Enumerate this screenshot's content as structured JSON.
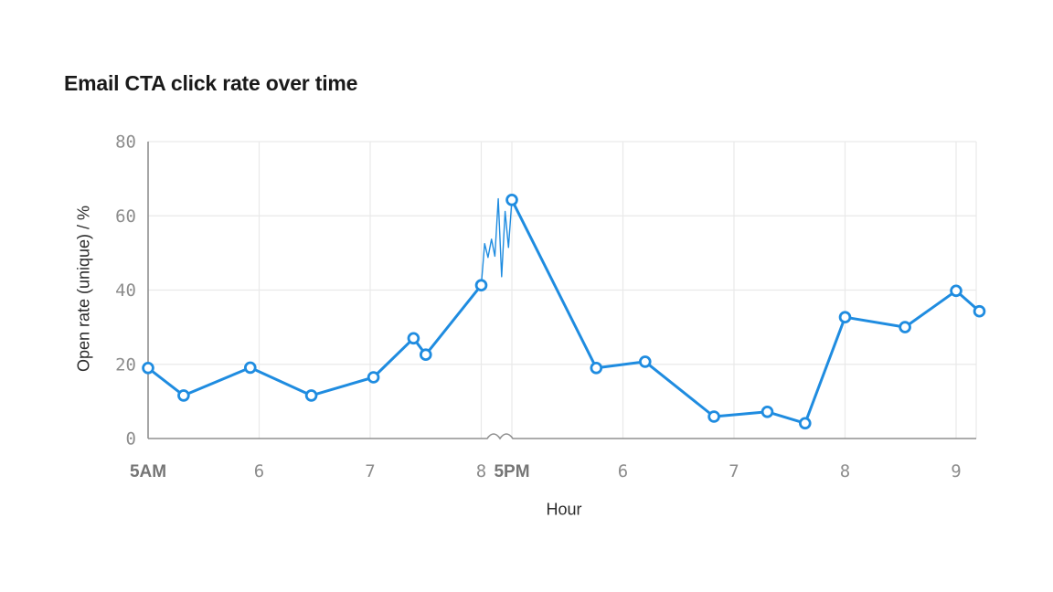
{
  "page": {
    "background": "#ffffff"
  },
  "chart_data": {
    "type": "line",
    "title": "Email CTA click rate over time",
    "xlabel": "Hour",
    "ylabel": "Open rate (unique) / %",
    "ylim": [
      0,
      80
    ],
    "y_ticks": [
      0,
      20,
      40,
      60,
      80
    ],
    "x_ticks": [
      {
        "label": "5AM",
        "hour": 5,
        "bold": true
      },
      {
        "label": "6",
        "hour": 6,
        "bold": false
      },
      {
        "label": "7",
        "hour": 7,
        "bold": false
      },
      {
        "label": "8",
        "hour": 8,
        "bold": false
      },
      {
        "label": "5PM",
        "hour": 17,
        "bold": true
      },
      {
        "label": "6",
        "hour": 18,
        "bold": false
      },
      {
        "label": "7",
        "hour": 19,
        "bold": false
      },
      {
        "label": "8",
        "hour": 20,
        "bold": false
      },
      {
        "label": "9",
        "hour": 21,
        "bold": false
      }
    ],
    "axis_break": {
      "after_hour": 8,
      "resume_hour": 17,
      "note": "wavy break marker on x-axis between 8AM and 5PM"
    },
    "grid": true,
    "legend": "none",
    "series": [
      {
        "name": "Open rate (unique) %",
        "points": [
          [
            5.0,
            19.0
          ],
          [
            5.32,
            11.6
          ],
          [
            5.92,
            19.1
          ],
          [
            6.47,
            11.6
          ],
          [
            7.03,
            16.5
          ],
          [
            7.39,
            27.0
          ],
          [
            7.5,
            22.6
          ],
          [
            8.0,
            41.3
          ],
          [
            17.0,
            64.3
          ],
          [
            17.76,
            19.0
          ],
          [
            18.2,
            20.7
          ],
          [
            18.82,
            5.9
          ],
          [
            19.3,
            7.2
          ],
          [
            19.64,
            4.1
          ],
          [
            20.0,
            32.7
          ],
          [
            20.54,
            30.0
          ],
          [
            21.0,
            39.8
          ],
          [
            21.21,
            34.3
          ]
        ]
      }
    ],
    "compressed_segment": {
      "style": "thin unmarked noisy line spanning the axis break from 8AM point to 5PM peak",
      "values": [
        41.3,
        52.5,
        48.8,
        53.7,
        49.1,
        64.6,
        43.6,
        61.2,
        51.5,
        64.3
      ]
    },
    "colors": {
      "line": "#1f8ce0",
      "marker_fill": "#ffffff",
      "grid": "#e9e9e9",
      "axis": "#909090",
      "tick_label": "#8d8d8d",
      "tick_label_bold": "#767676",
      "axis_title": "#2c2c2c",
      "title": "#1a1a1a"
    }
  }
}
